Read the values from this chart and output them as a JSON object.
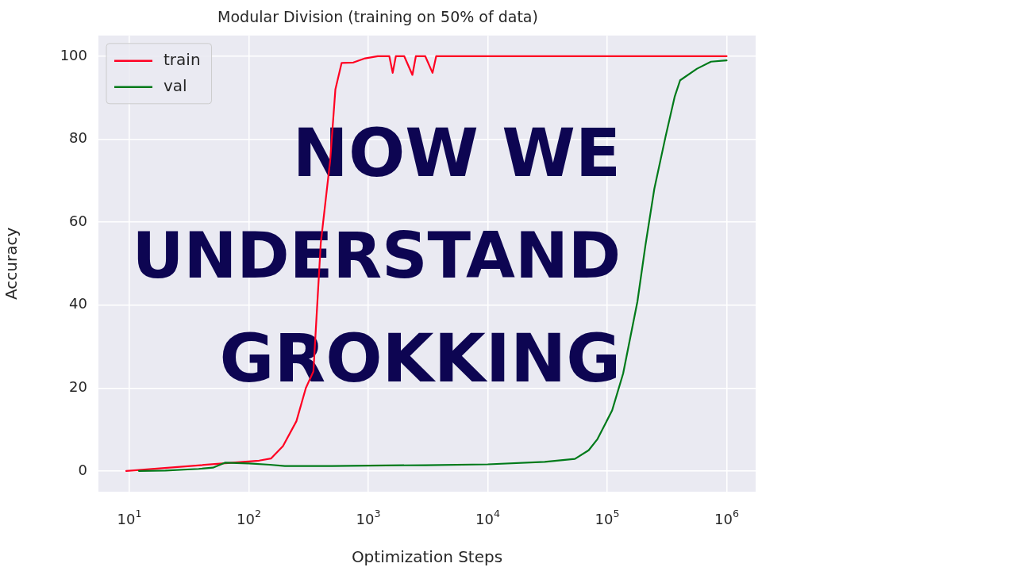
{
  "chart_data": {
    "type": "line",
    "title": "Modular Division (training on 50% of data)",
    "xlabel": "Optimization Steps",
    "ylabel": "Accuracy",
    "log": "x",
    "grid": true,
    "legend": "top left",
    "marker": "none",
    "line_style": "solid",
    "xlim": [
      5.5,
      1750000
    ],
    "xticks": [
      {
        "value": 10,
        "label": "10$^{1}$"
      },
      {
        "value": 100,
        "label": "10$^{2}$"
      },
      {
        "value": 1000,
        "label": "10$^{3}$"
      },
      {
        "value": 10000,
        "label": "10$^{4}$"
      },
      {
        "value": 100000,
        "label": "10$^{5}$"
      },
      {
        "value": 1000000,
        "label": "10$^{6}$"
      }
    ],
    "ylim": [
      -5,
      105
    ],
    "yticks": [
      0,
      20,
      40,
      60,
      80,
      100
    ],
    "annotations": [
      "NOW WE",
      "UNDERSTAND",
      "GROKKING"
    ],
    "series": [
      {
        "name": "train",
        "color": "#ff0022",
        "x": [
          9.4,
          122,
          153,
          193,
          250,
          300,
          347,
          400,
          480,
          530,
          598,
          750,
          940,
          1200,
          1500,
          1600,
          1700,
          2000,
          2340,
          2500,
          3000,
          3450,
          3700,
          5000,
          7000,
          10000,
          20000,
          50000,
          100000,
          1000000
        ],
        "values": [
          0,
          2.5,
          3,
          6,
          12,
          20,
          24,
          55,
          75,
          92,
          98.4,
          98.5,
          99.5,
          100,
          100,
          96,
          100,
          100,
          95.5,
          100,
          100,
          96,
          100,
          100,
          100,
          100,
          100,
          100,
          100,
          100
        ]
      },
      {
        "name": "val",
        "color": "#007a1a",
        "x": [
          12,
          20,
          38,
          50,
          63,
          100,
          150,
          200,
          500,
          1000,
          3000,
          10000,
          30000,
          53700,
          70000,
          83000,
          110000,
          136000,
          179000,
          209000,
          248000,
          308000,
          367000,
          408000,
          565000,
          740000,
          1000000
        ],
        "values": [
          0,
          0.1,
          0.5,
          0.8,
          2,
          1.8,
          1.5,
          1.2,
          1.2,
          1.3,
          1.4,
          1.6,
          2.2,
          2.9,
          5,
          7.7,
          14.6,
          23.5,
          40.8,
          54.4,
          68,
          80.6,
          90.2,
          94.2,
          97,
          98.7,
          99
        ]
      }
    ]
  }
}
